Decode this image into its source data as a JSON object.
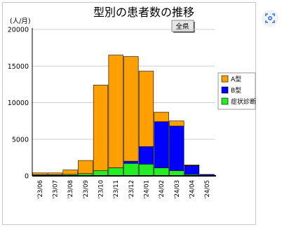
{
  "chart_data": {
    "type": "bar",
    "stacked": true,
    "title": "型別の患者数の推移",
    "ylabel": "(人/月)",
    "ylim": [
      0,
      20000
    ],
    "yticks": [
      0,
      5000,
      10000,
      15000,
      20000
    ],
    "grid": true,
    "legend_position": "right",
    "region_tag": "全県",
    "categories": [
      "'23/06",
      "'23/07",
      "'23/08",
      "'23/09",
      "'23/10",
      "'23/11",
      "'23/12",
      "'24/01",
      "'24/02",
      "'24/03",
      "'24/04",
      "'24/05"
    ],
    "series": [
      {
        "name": "症状診断",
        "color": "#22ee22",
        "values": [
          150,
          150,
          200,
          300,
          700,
          1100,
          1700,
          1600,
          1100,
          700,
          200,
          50
        ]
      },
      {
        "name": "B型",
        "color": "#0000ff",
        "values": [
          0,
          0,
          0,
          0,
          0,
          0,
          300,
          2400,
          6300,
          6100,
          1200,
          150
        ]
      },
      {
        "name": "A型",
        "color": "#ffa000",
        "values": [
          250,
          250,
          600,
          1800,
          11700,
          15400,
          14300,
          10300,
          1300,
          700,
          100,
          0
        ]
      }
    ]
  },
  "icons": {
    "scan": "scan-icon"
  }
}
